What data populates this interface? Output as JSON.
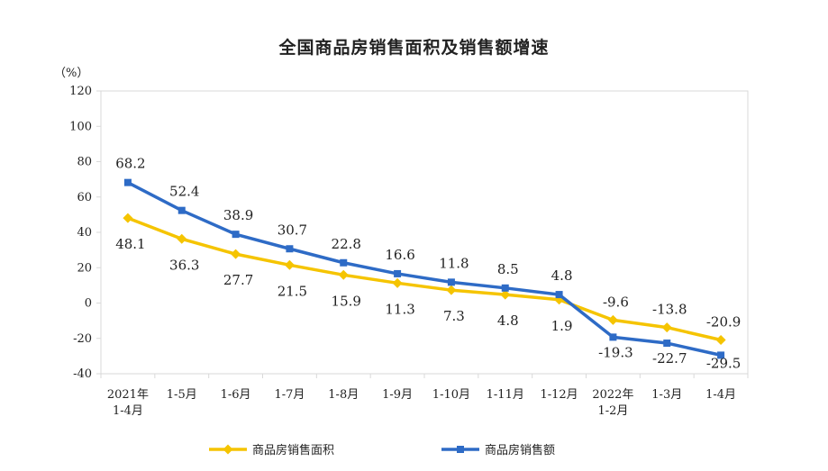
{
  "chart_data": {
    "type": "line",
    "title": "全国商品房销售面积及销售额增速",
    "ylabel": "（%）",
    "xlabel": "",
    "ylim": [
      -40,
      120
    ],
    "yticks": [
      -40,
      -20,
      0,
      20,
      40,
      60,
      80,
      100,
      120
    ],
    "categories": [
      [
        "2021年",
        "1-4月"
      ],
      [
        "1-5月"
      ],
      [
        "1-6月"
      ],
      [
        "1-7月"
      ],
      [
        "1-8月"
      ],
      [
        "1-9月"
      ],
      [
        "1-10月"
      ],
      [
        "1-11月"
      ],
      [
        "1-12月"
      ],
      [
        "2022年",
        "1-2月"
      ],
      [
        "1-3月"
      ],
      [
        "1-4月"
      ]
    ],
    "legend_position": "bottom",
    "series": [
      {
        "name": "商品房销售面积",
        "color": "#F5C400",
        "marker": "diamond",
        "values": [
          48.1,
          36.3,
          27.7,
          21.5,
          15.9,
          11.3,
          7.3,
          4.8,
          1.9,
          -9.6,
          -13.8,
          -20.9
        ],
        "labels": [
          "48.1",
          "36.3",
          "27.7",
          "21.5",
          "15.9",
          "11.3",
          "7.3",
          "4.8",
          "1.9",
          "-9.6",
          "-13.8",
          "-20.9"
        ]
      },
      {
        "name": "商品房销售额",
        "color": "#2E6BC6",
        "marker": "square",
        "values": [
          68.2,
          52.4,
          38.9,
          30.7,
          22.8,
          16.6,
          11.8,
          8.5,
          4.8,
          -19.3,
          -22.7,
          -29.5
        ],
        "labels": [
          "68.2",
          "52.4",
          "38.9",
          "30.7",
          "22.8",
          "16.6",
          "11.8",
          "8.5",
          "4.8",
          "-19.3",
          "-22.7",
          "-29.5"
        ]
      }
    ]
  }
}
